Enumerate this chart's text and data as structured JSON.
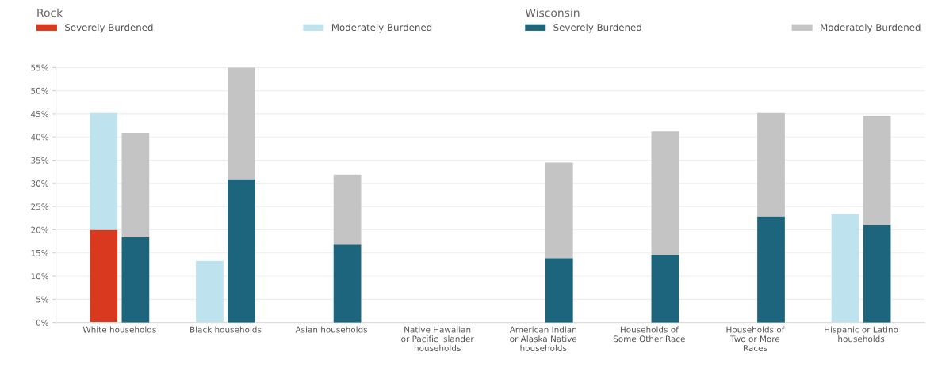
{
  "chart_data": [
    {
      "type": "bar",
      "stacked": true,
      "legend_title": "Rock",
      "legend": "top left",
      "categories": [
        "White households",
        "Black households",
        "Asian households",
        "Native Hawaiian\nor Pacific Islander\nhouseholds",
        "American Indian\nor Alaska Native\nhouseholds",
        "Households of\nSome Other Race",
        "Households of\nTwo or More\nRaces",
        "Hispanic or Latino\nhouseholds"
      ],
      "series": [
        {
          "name": "Severely Burdened",
          "color": "#d9391f",
          "values": [
            20,
            null,
            null,
            null,
            null,
            null,
            null,
            null
          ]
        },
        {
          "name": "Moderately Burdened",
          "color": "#bfe3ee",
          "values": [
            25.2,
            13.3,
            null,
            null,
            null,
            null,
            null,
            23.4
          ]
        }
      ],
      "ylim": [
        0,
        55
      ],
      "yticks": [
        {
          "value": 0,
          "label": "0%"
        },
        {
          "value": 5,
          "label": "5%"
        },
        {
          "value": 10,
          "label": "10%"
        },
        {
          "value": 15,
          "label": "15%"
        },
        {
          "value": 20,
          "label": "20%"
        },
        {
          "value": 25,
          "label": "25%"
        },
        {
          "value": 30,
          "label": "30%"
        },
        {
          "value": 35,
          "label": "35%"
        },
        {
          "value": 40,
          "label": "40%"
        },
        {
          "value": 45,
          "label": "45%"
        },
        {
          "value": 50,
          "label": "50%"
        },
        {
          "value": 55,
          "label": "55%"
        }
      ],
      "grid": "y"
    },
    {
      "type": "bar",
      "stacked": true,
      "legend_title": "Wisconsin",
      "legend": "top right",
      "tick_labels": false,
      "categories": [
        null,
        null,
        null,
        null,
        null,
        null,
        null,
        null
      ],
      "series": [
        {
          "name": "Severely Burdened",
          "color": "#1c657c",
          "values": [
            18.4,
            30.9,
            16.8,
            null,
            13.9,
            14.6,
            22.9,
            21.0
          ]
        },
        {
          "name": "Moderately Burdened",
          "color": "#c4c4c4",
          "values": [
            22.5,
            24.1,
            15.1,
            null,
            20.6,
            26.6,
            22.3,
            23.6
          ]
        }
      ],
      "ylim": [
        0,
        55
      ]
    }
  ]
}
